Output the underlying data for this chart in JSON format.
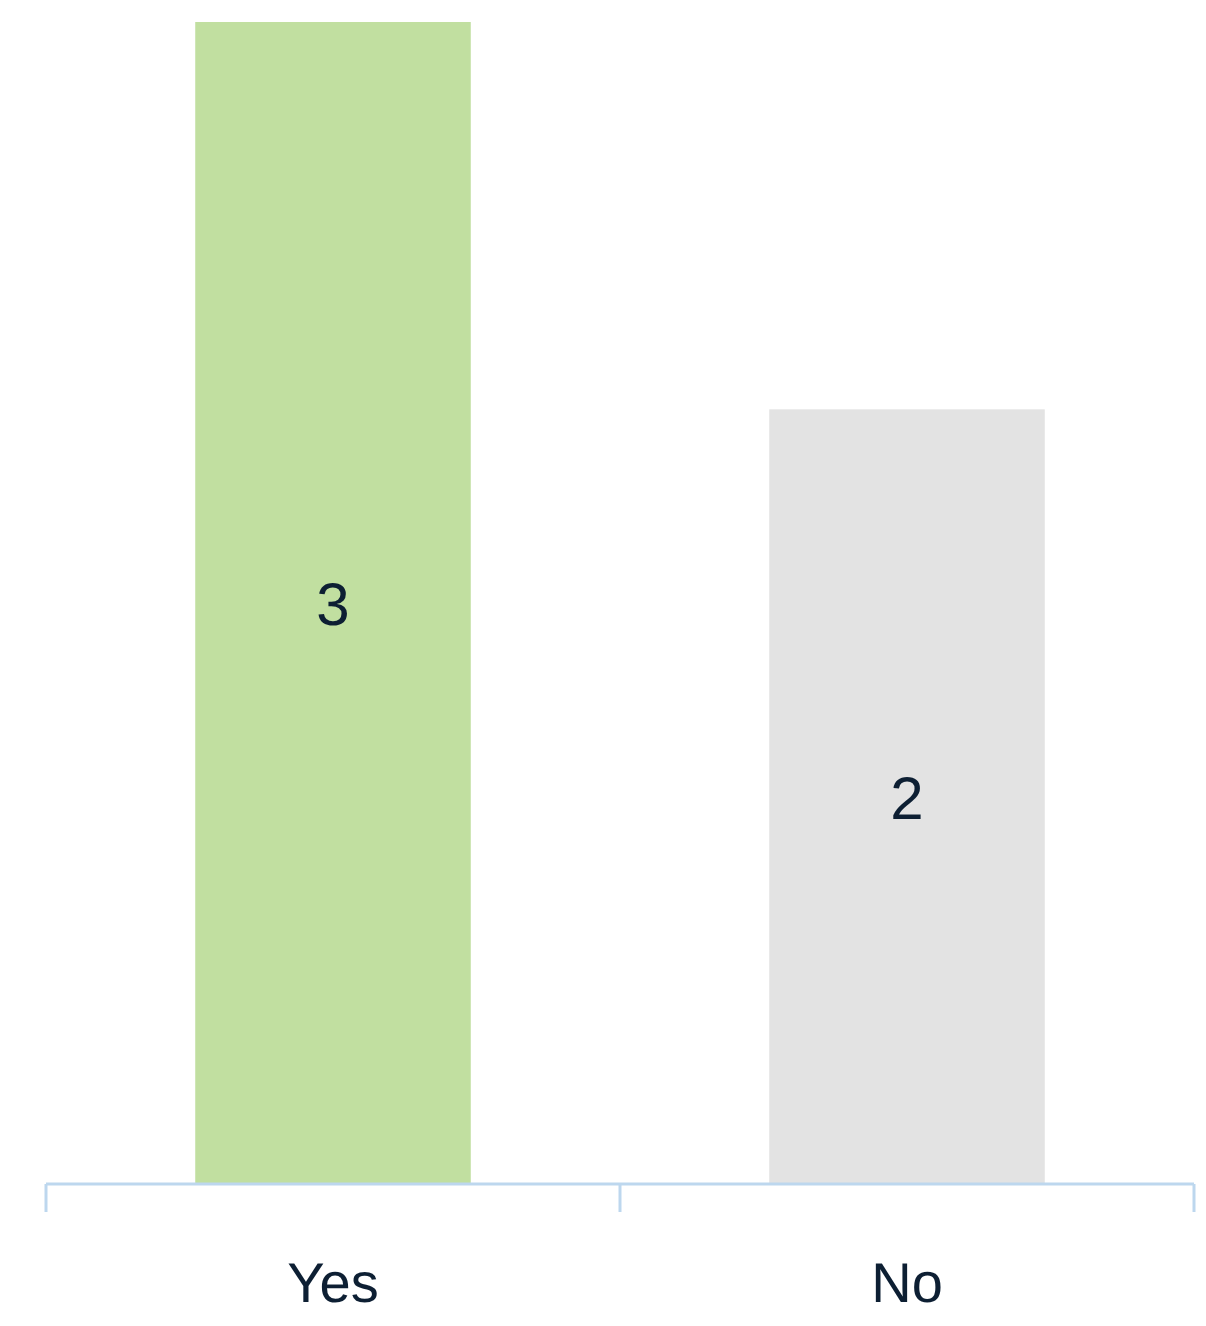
{
  "chart_data": {
    "type": "bar",
    "categories": [
      "Yes",
      "No"
    ],
    "values": [
      3,
      2
    ],
    "colors": [
      "#c1dfa0",
      "#e3e3e3"
    ],
    "ylim": [
      0,
      3
    ],
    "data_labels": true
  }
}
